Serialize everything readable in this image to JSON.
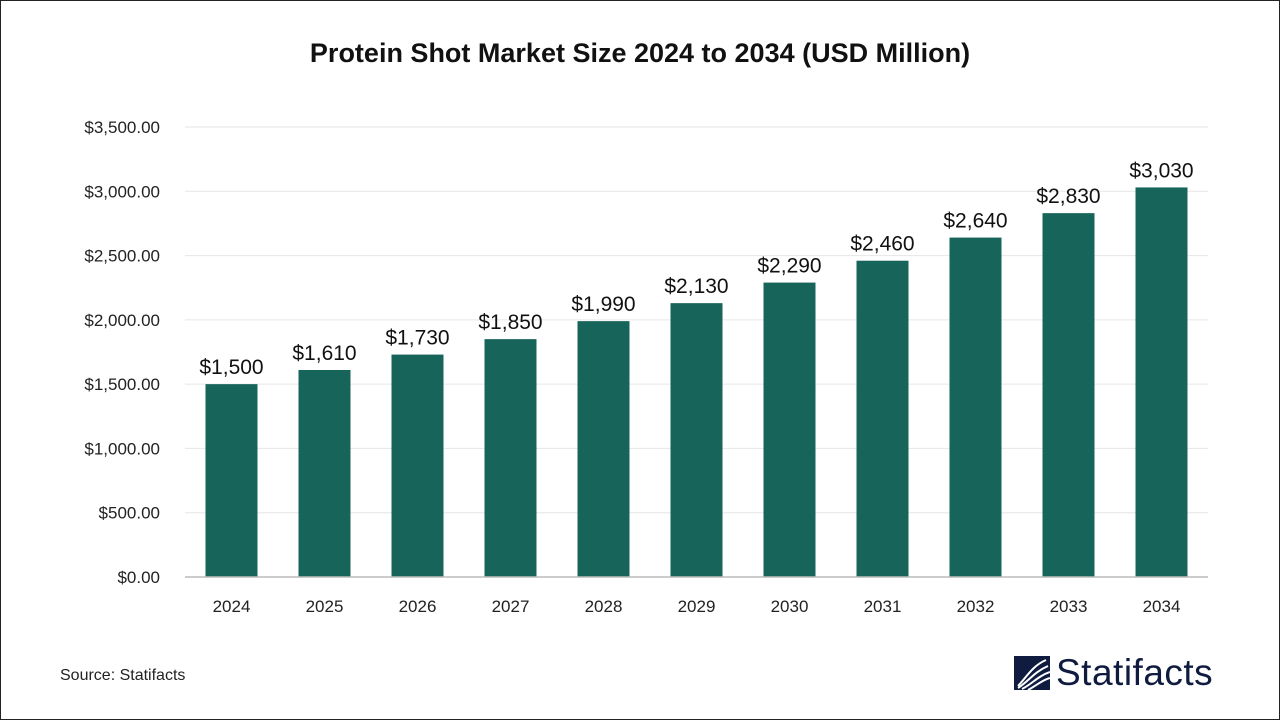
{
  "chart_data": {
    "type": "bar",
    "title": "Protein Shot Market Size 2024 to 2034 (USD Million)",
    "xlabel": "",
    "ylabel": "",
    "categories": [
      "2024",
      "2025",
      "2026",
      "2027",
      "2028",
      "2029",
      "2030",
      "2031",
      "2032",
      "2033",
      "2034"
    ],
    "values": [
      1500,
      1610,
      1730,
      1850,
      1990,
      2130,
      2290,
      2460,
      2640,
      2830,
      3030
    ],
    "data_labels": [
      "$1,500",
      "$1,610",
      "$1,730",
      "$1,850",
      "$1,990",
      "$2,130",
      "$2,290",
      "$2,460",
      "$2,640",
      "$2,830",
      "$3,030"
    ],
    "yticks": [
      0,
      500,
      1000,
      1500,
      2000,
      2500,
      3000,
      3500
    ],
    "ytick_labels": [
      "$0.00",
      "$500.00",
      "$1,000.00",
      "$1,500.00",
      "$2,000.00",
      "$2,500.00",
      "$3,000.00",
      "$3,500.00"
    ],
    "ylim": [
      0,
      3500
    ],
    "grid": true,
    "bar_color": "#17645a"
  },
  "source": "Source: Statifacts",
  "logo": {
    "text": "Statifacts",
    "color": "#0f1c3f"
  }
}
